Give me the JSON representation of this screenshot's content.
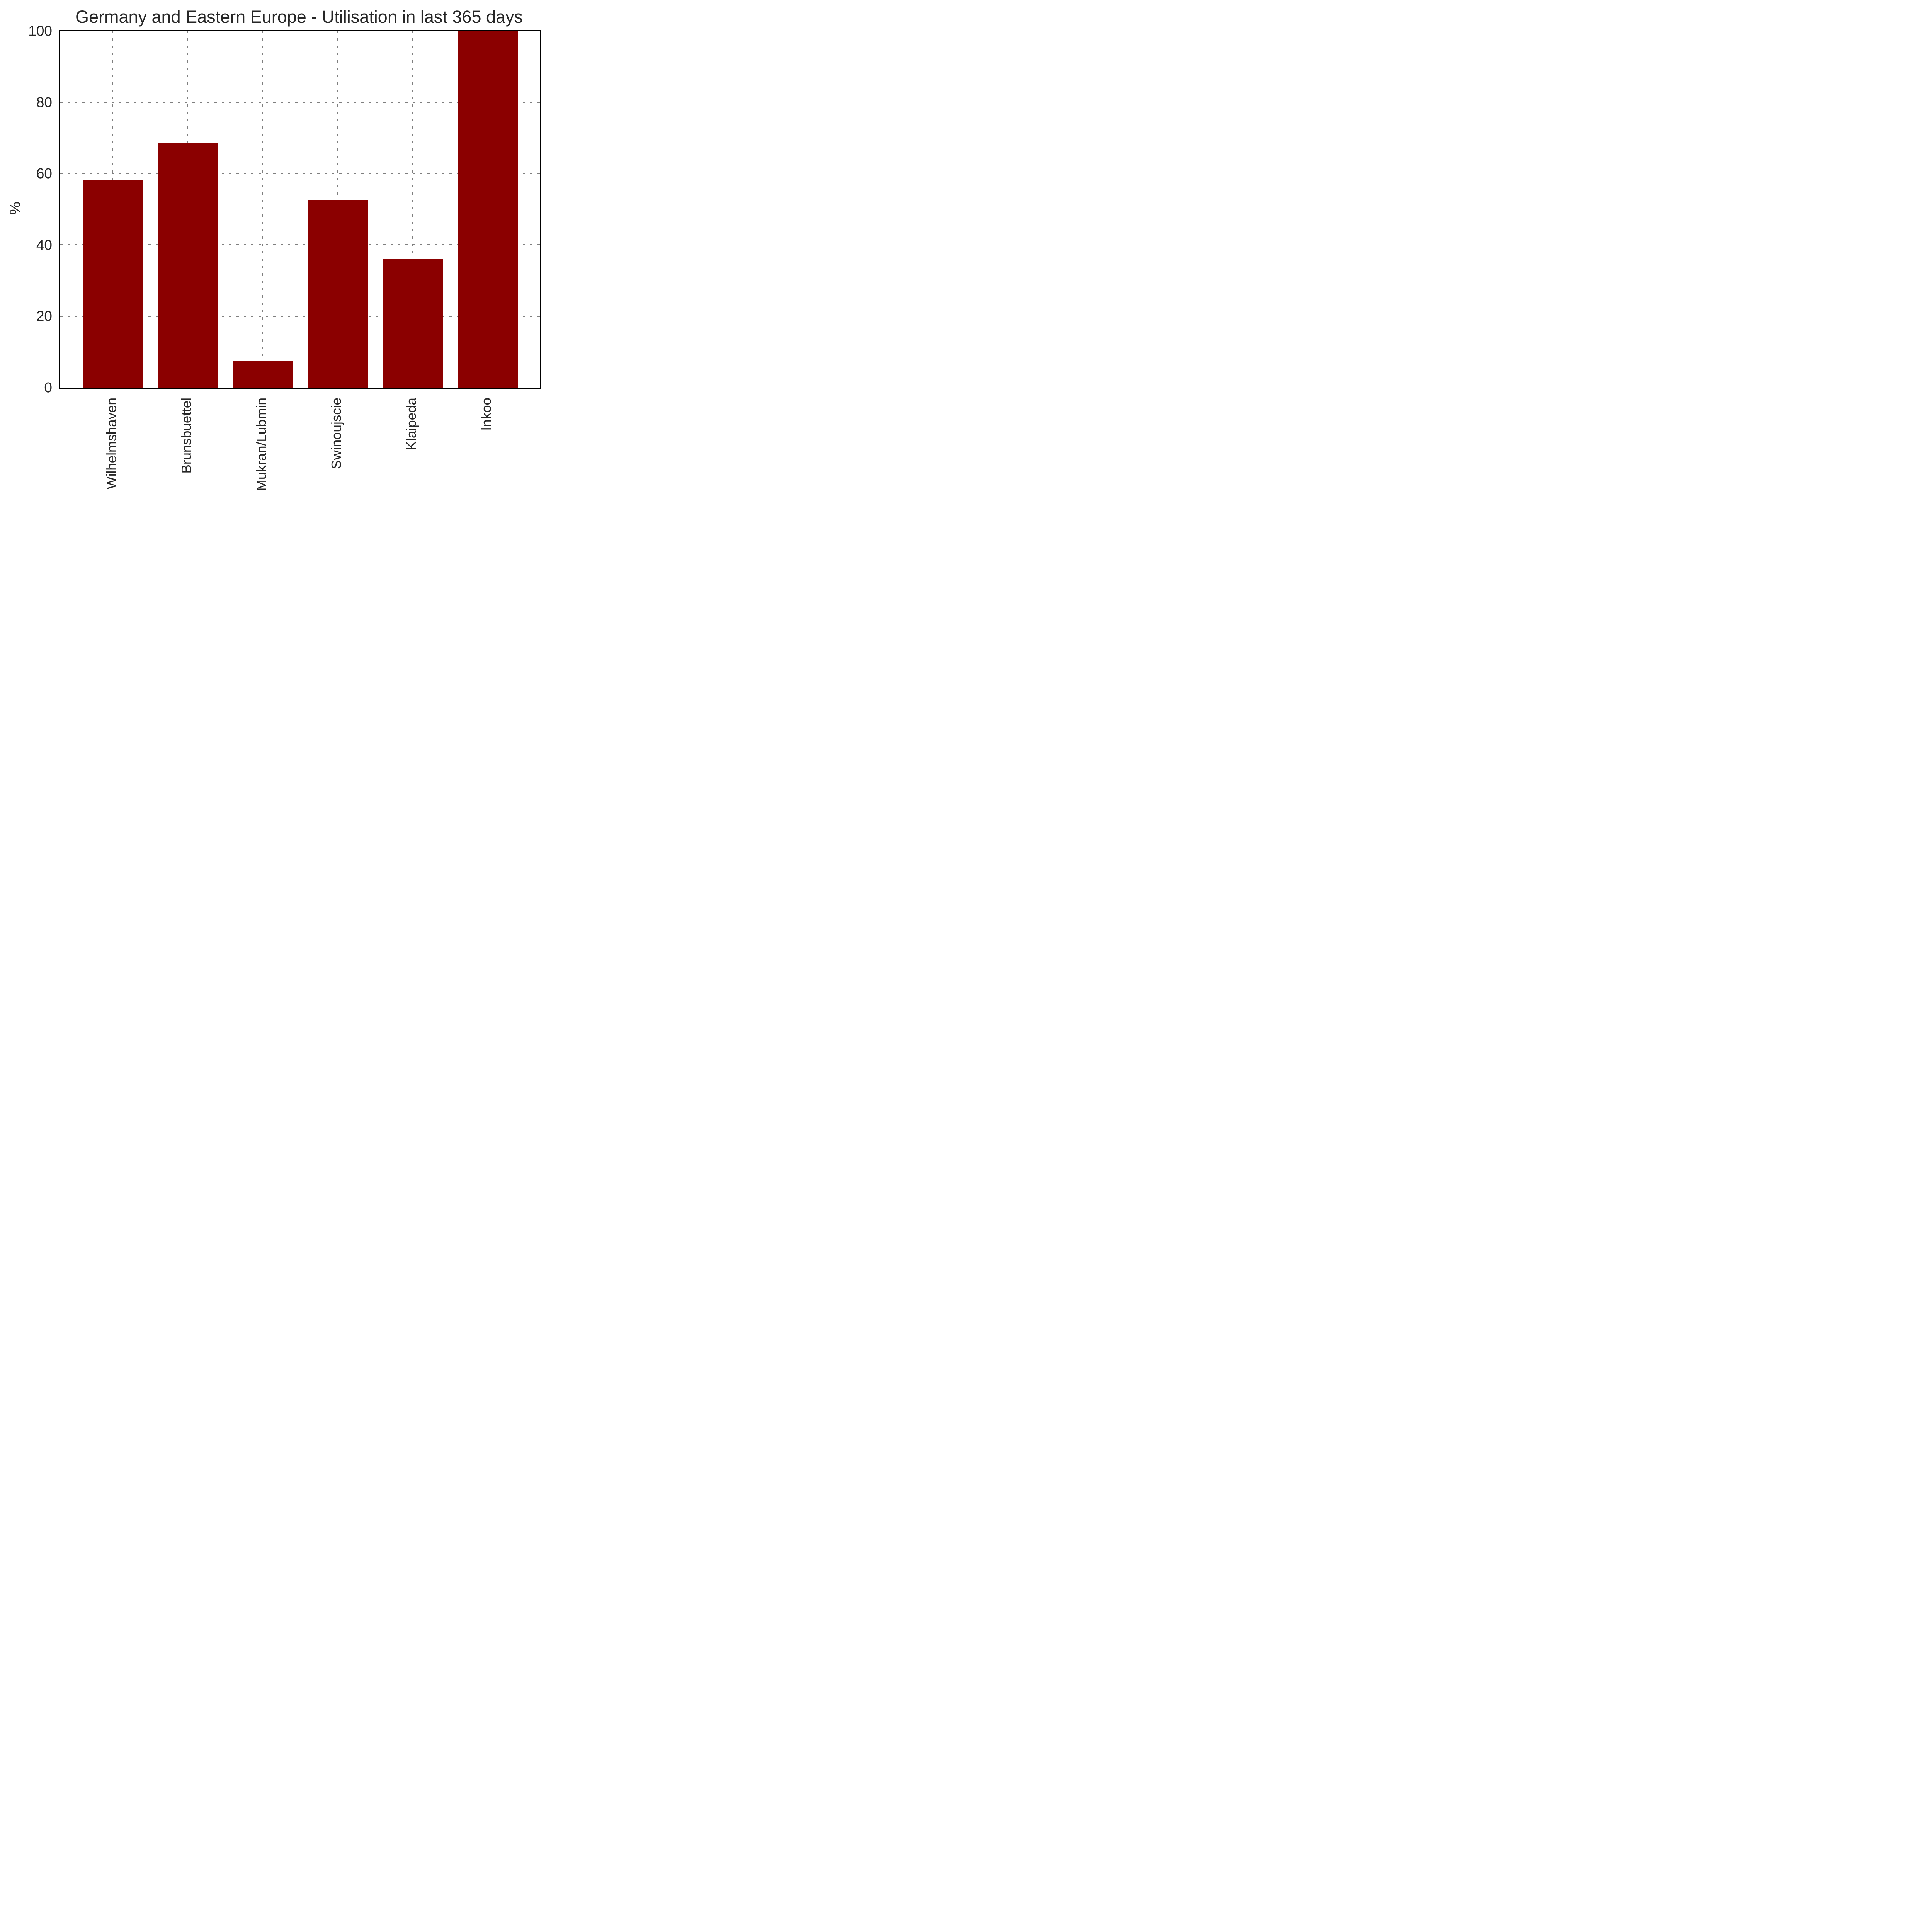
{
  "title": "Germany and Eastern Europe - Utilisation in last 365 days",
  "chart_data": {
    "type": "bar",
    "title": "Germany and Eastern Europe - Utilisation in last 365 days",
    "categories": [
      "Wilhelmshaven",
      "Brunsbuettel",
      "Mukran/Lubmin",
      "Swinoujscie",
      "Klaipeda",
      "Inkoo"
    ],
    "values": [
      58.3,
      68.5,
      7.5,
      52.7,
      36.1,
      100
    ],
    "xlabel": "",
    "ylabel": "%",
    "ylim": [
      0,
      100
    ],
    "yticks": [
      0,
      20,
      40,
      60,
      80,
      100
    ],
    "grid": "dotted gray gridlines on both axes, drawn behind bars",
    "legend_position": "none",
    "bar_color": "#8b0000"
  },
  "colors": {
    "bar": "#8b0000",
    "spine": "#000000",
    "grid": "#7f7f7f",
    "text": "#262626",
    "background": "#ffffff"
  }
}
